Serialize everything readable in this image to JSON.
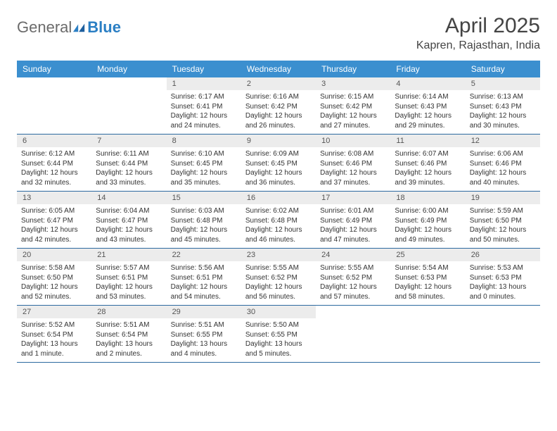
{
  "brand": {
    "name1": "General",
    "name2": "Blue"
  },
  "title": "April 2025",
  "location": "Kapren, Rajasthan, India",
  "colors": {
    "header_bg": "#3b8fcf",
    "header_text": "#ffffff",
    "daynum_bg": "#ececec",
    "rule": "#2c6aa0",
    "logo_gray": "#6b6b6b",
    "logo_blue": "#2b7fc4"
  },
  "day_names": [
    "Sunday",
    "Monday",
    "Tuesday",
    "Wednesday",
    "Thursday",
    "Friday",
    "Saturday"
  ],
  "weeks": [
    [
      {
        "n": "",
        "sr": "",
        "ss": "",
        "dl": ""
      },
      {
        "n": "",
        "sr": "",
        "ss": "",
        "dl": ""
      },
      {
        "n": "1",
        "sr": "Sunrise: 6:17 AM",
        "ss": "Sunset: 6:41 PM",
        "dl": "Daylight: 12 hours and 24 minutes."
      },
      {
        "n": "2",
        "sr": "Sunrise: 6:16 AM",
        "ss": "Sunset: 6:42 PM",
        "dl": "Daylight: 12 hours and 26 minutes."
      },
      {
        "n": "3",
        "sr": "Sunrise: 6:15 AM",
        "ss": "Sunset: 6:42 PM",
        "dl": "Daylight: 12 hours and 27 minutes."
      },
      {
        "n": "4",
        "sr": "Sunrise: 6:14 AM",
        "ss": "Sunset: 6:43 PM",
        "dl": "Daylight: 12 hours and 29 minutes."
      },
      {
        "n": "5",
        "sr": "Sunrise: 6:13 AM",
        "ss": "Sunset: 6:43 PM",
        "dl": "Daylight: 12 hours and 30 minutes."
      }
    ],
    [
      {
        "n": "6",
        "sr": "Sunrise: 6:12 AM",
        "ss": "Sunset: 6:44 PM",
        "dl": "Daylight: 12 hours and 32 minutes."
      },
      {
        "n": "7",
        "sr": "Sunrise: 6:11 AM",
        "ss": "Sunset: 6:44 PM",
        "dl": "Daylight: 12 hours and 33 minutes."
      },
      {
        "n": "8",
        "sr": "Sunrise: 6:10 AM",
        "ss": "Sunset: 6:45 PM",
        "dl": "Daylight: 12 hours and 35 minutes."
      },
      {
        "n": "9",
        "sr": "Sunrise: 6:09 AM",
        "ss": "Sunset: 6:45 PM",
        "dl": "Daylight: 12 hours and 36 minutes."
      },
      {
        "n": "10",
        "sr": "Sunrise: 6:08 AM",
        "ss": "Sunset: 6:46 PM",
        "dl": "Daylight: 12 hours and 37 minutes."
      },
      {
        "n": "11",
        "sr": "Sunrise: 6:07 AM",
        "ss": "Sunset: 6:46 PM",
        "dl": "Daylight: 12 hours and 39 minutes."
      },
      {
        "n": "12",
        "sr": "Sunrise: 6:06 AM",
        "ss": "Sunset: 6:46 PM",
        "dl": "Daylight: 12 hours and 40 minutes."
      }
    ],
    [
      {
        "n": "13",
        "sr": "Sunrise: 6:05 AM",
        "ss": "Sunset: 6:47 PM",
        "dl": "Daylight: 12 hours and 42 minutes."
      },
      {
        "n": "14",
        "sr": "Sunrise: 6:04 AM",
        "ss": "Sunset: 6:47 PM",
        "dl": "Daylight: 12 hours and 43 minutes."
      },
      {
        "n": "15",
        "sr": "Sunrise: 6:03 AM",
        "ss": "Sunset: 6:48 PM",
        "dl": "Daylight: 12 hours and 45 minutes."
      },
      {
        "n": "16",
        "sr": "Sunrise: 6:02 AM",
        "ss": "Sunset: 6:48 PM",
        "dl": "Daylight: 12 hours and 46 minutes."
      },
      {
        "n": "17",
        "sr": "Sunrise: 6:01 AM",
        "ss": "Sunset: 6:49 PM",
        "dl": "Daylight: 12 hours and 47 minutes."
      },
      {
        "n": "18",
        "sr": "Sunrise: 6:00 AM",
        "ss": "Sunset: 6:49 PM",
        "dl": "Daylight: 12 hours and 49 minutes."
      },
      {
        "n": "19",
        "sr": "Sunrise: 5:59 AM",
        "ss": "Sunset: 6:50 PM",
        "dl": "Daylight: 12 hours and 50 minutes."
      }
    ],
    [
      {
        "n": "20",
        "sr": "Sunrise: 5:58 AM",
        "ss": "Sunset: 6:50 PM",
        "dl": "Daylight: 12 hours and 52 minutes."
      },
      {
        "n": "21",
        "sr": "Sunrise: 5:57 AM",
        "ss": "Sunset: 6:51 PM",
        "dl": "Daylight: 12 hours and 53 minutes."
      },
      {
        "n": "22",
        "sr": "Sunrise: 5:56 AM",
        "ss": "Sunset: 6:51 PM",
        "dl": "Daylight: 12 hours and 54 minutes."
      },
      {
        "n": "23",
        "sr": "Sunrise: 5:55 AM",
        "ss": "Sunset: 6:52 PM",
        "dl": "Daylight: 12 hours and 56 minutes."
      },
      {
        "n": "24",
        "sr": "Sunrise: 5:55 AM",
        "ss": "Sunset: 6:52 PM",
        "dl": "Daylight: 12 hours and 57 minutes."
      },
      {
        "n": "25",
        "sr": "Sunrise: 5:54 AM",
        "ss": "Sunset: 6:53 PM",
        "dl": "Daylight: 12 hours and 58 minutes."
      },
      {
        "n": "26",
        "sr": "Sunrise: 5:53 AM",
        "ss": "Sunset: 6:53 PM",
        "dl": "Daylight: 13 hours and 0 minutes."
      }
    ],
    [
      {
        "n": "27",
        "sr": "Sunrise: 5:52 AM",
        "ss": "Sunset: 6:54 PM",
        "dl": "Daylight: 13 hours and 1 minute."
      },
      {
        "n": "28",
        "sr": "Sunrise: 5:51 AM",
        "ss": "Sunset: 6:54 PM",
        "dl": "Daylight: 13 hours and 2 minutes."
      },
      {
        "n": "29",
        "sr": "Sunrise: 5:51 AM",
        "ss": "Sunset: 6:55 PM",
        "dl": "Daylight: 13 hours and 4 minutes."
      },
      {
        "n": "30",
        "sr": "Sunrise: 5:50 AM",
        "ss": "Sunset: 6:55 PM",
        "dl": "Daylight: 13 hours and 5 minutes."
      },
      {
        "n": "",
        "sr": "",
        "ss": "",
        "dl": ""
      },
      {
        "n": "",
        "sr": "",
        "ss": "",
        "dl": ""
      },
      {
        "n": "",
        "sr": "",
        "ss": "",
        "dl": ""
      }
    ]
  ]
}
